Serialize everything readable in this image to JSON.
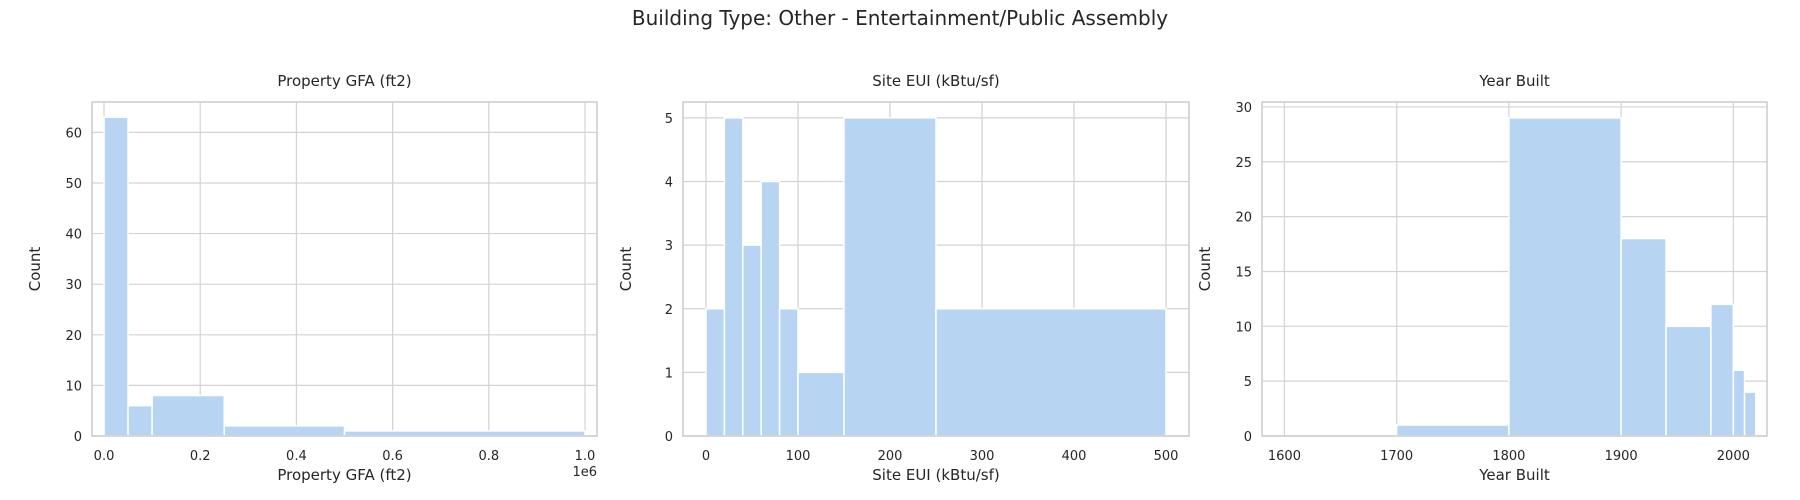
{
  "figure": {
    "suptitle": "Building Type: Other - Entertainment/Public Assembly"
  },
  "colors": {
    "bar_fill": "#b7d5f3",
    "bar_edge": "#ffffff",
    "grid": "#d3d3d3",
    "spine": "#cccccc",
    "text": "#262626"
  },
  "chart_data": [
    {
      "type": "bar",
      "title": "Property GFA (ft2)",
      "xlabel": "Property GFA (ft2)",
      "ylabel": "Count",
      "xlim": [
        -25000,
        1025000
      ],
      "ylim": [
        0,
        66
      ],
      "xticks": [
        0,
        200000,
        400000,
        600000,
        800000,
        1000000
      ],
      "xtick_labels": [
        "0.0",
        "0.2",
        "0.4",
        "0.6",
        "0.8",
        "1.0"
      ],
      "x_offset_text": "1e6",
      "yticks": [
        0,
        10,
        20,
        30,
        40,
        50,
        60
      ],
      "ytick_labels": [
        "0",
        "10",
        "20",
        "30",
        "40",
        "50",
        "60"
      ],
      "grid": true,
      "bins": [
        {
          "start": 0,
          "end": 50000,
          "count": 63
        },
        {
          "start": 50000,
          "end": 100000,
          "count": 6
        },
        {
          "start": 100000,
          "end": 250000,
          "count": 8
        },
        {
          "start": 250000,
          "end": 500000,
          "count": 2
        },
        {
          "start": 500000,
          "end": 1000000,
          "count": 1
        }
      ]
    },
    {
      "type": "bar",
      "title": "Site EUI (kBtu/sf)",
      "xlabel": "Site EUI (kBtu/sf)",
      "ylabel": "Count",
      "xlim": [
        -25,
        525
      ],
      "ylim": [
        0,
        5.25
      ],
      "xticks": [
        0,
        100,
        200,
        300,
        400,
        500
      ],
      "xtick_labels": [
        "0",
        "100",
        "200",
        "300",
        "400",
        "500"
      ],
      "yticks": [
        0,
        1,
        2,
        3,
        4,
        5
      ],
      "ytick_labels": [
        "0",
        "1",
        "2",
        "3",
        "4",
        "5"
      ],
      "grid": true,
      "bins": [
        {
          "start": 0,
          "end": 20,
          "count": 2
        },
        {
          "start": 20,
          "end": 40,
          "count": 5
        },
        {
          "start": 40,
          "end": 60,
          "count": 3
        },
        {
          "start": 60,
          "end": 80,
          "count": 4
        },
        {
          "start": 80,
          "end": 100,
          "count": 2
        },
        {
          "start": 100,
          "end": 150,
          "count": 1
        },
        {
          "start": 150,
          "end": 250,
          "count": 5
        },
        {
          "start": 250,
          "end": 500,
          "count": 2
        }
      ]
    },
    {
      "type": "bar",
      "title": "Year Built",
      "xlabel": "Year Built",
      "ylabel": "Count",
      "xlim": [
        1580,
        2030
      ],
      "ylim": [
        0,
        30.45
      ],
      "xticks": [
        1600,
        1700,
        1800,
        1900,
        2000
      ],
      "xtick_labels": [
        "1600",
        "1700",
        "1800",
        "1900",
        "2000"
      ],
      "yticks": [
        0,
        5,
        10,
        15,
        20,
        25,
        30
      ],
      "ytick_labels": [
        "0",
        "5",
        "10",
        "15",
        "20",
        "25",
        "30"
      ],
      "grid": true,
      "bins": [
        {
          "start": 1600,
          "end": 1700,
          "count": 0
        },
        {
          "start": 1700,
          "end": 1800,
          "count": 1
        },
        {
          "start": 1800,
          "end": 1900,
          "count": 29
        },
        {
          "start": 1900,
          "end": 1940,
          "count": 18
        },
        {
          "start": 1940,
          "end": 1980,
          "count": 10
        },
        {
          "start": 1980,
          "end": 2000,
          "count": 12
        },
        {
          "start": 2000,
          "end": 2010,
          "count": 6
        },
        {
          "start": 2010,
          "end": 2020,
          "count": 4
        }
      ]
    }
  ]
}
